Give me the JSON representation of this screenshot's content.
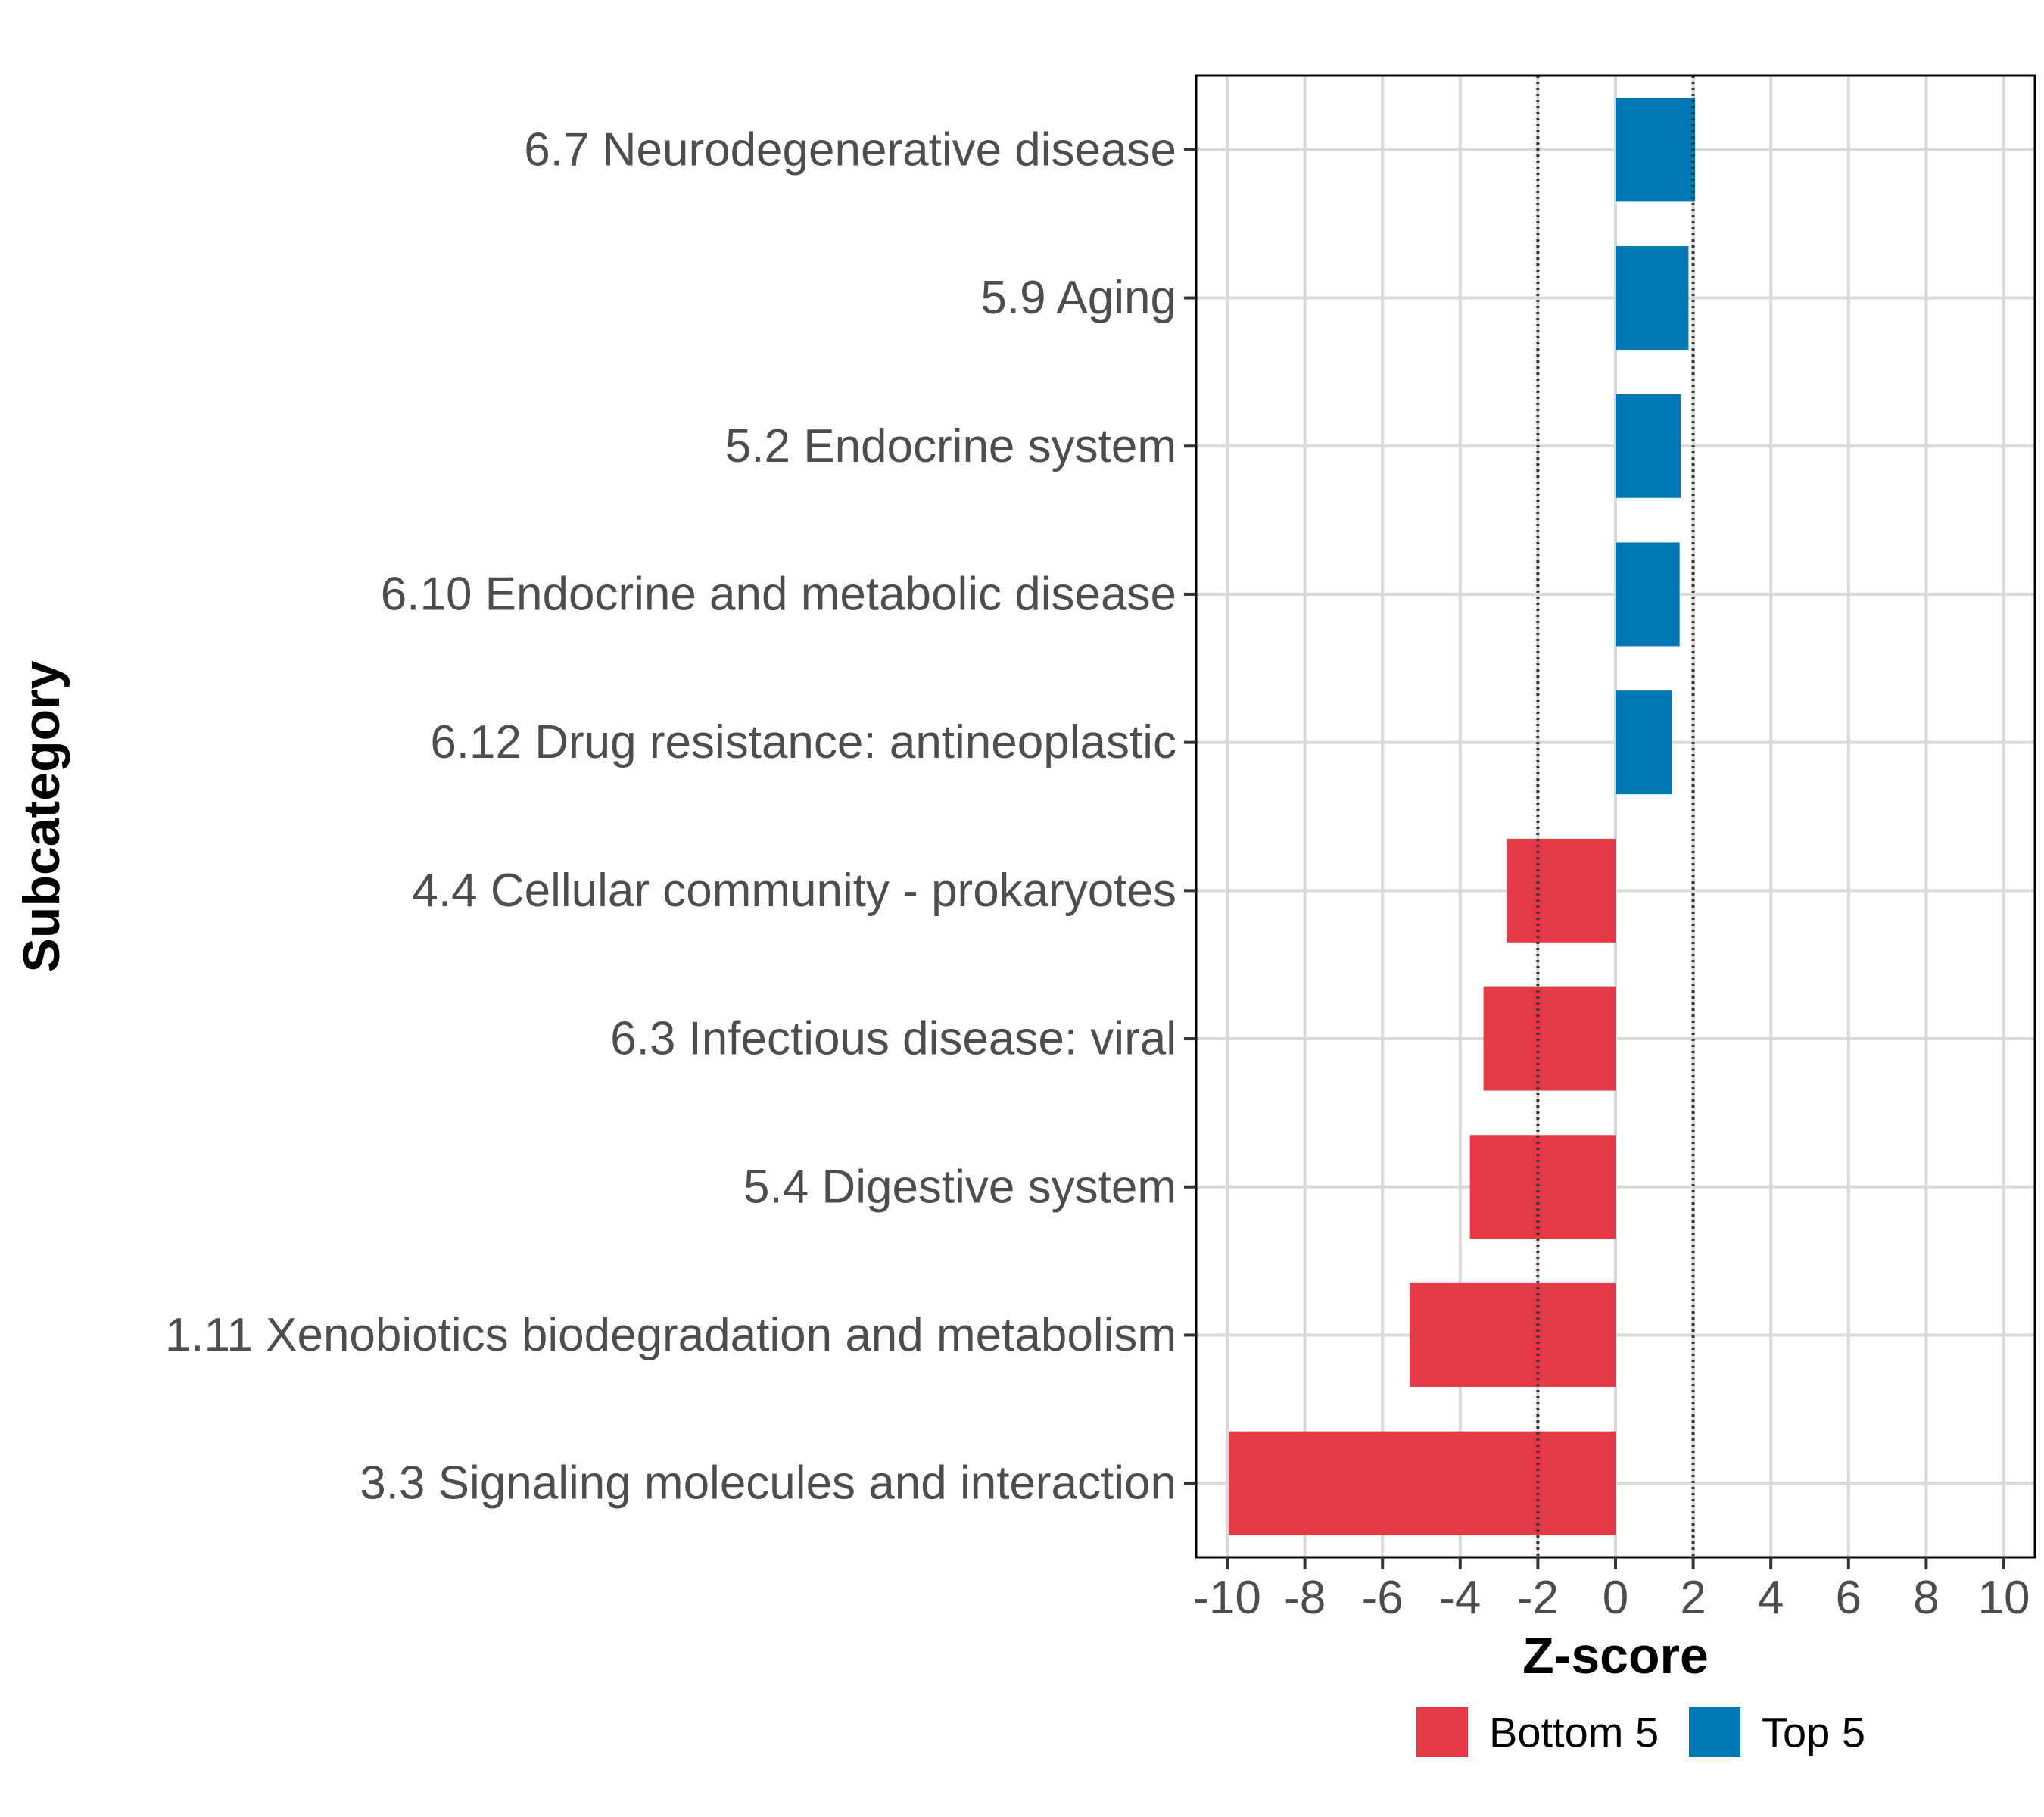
{
  "chart_data": {
    "type": "bar",
    "orientation": "horizontal",
    "categories": [
      "6.7 Neurodegenerative disease",
      "5.9 Aging",
      "5.2 Endocrine system",
      "6.10 Endocrine and metabolic disease",
      "6.12 Drug resistance: antineoplastic",
      "4.4 Cellular community - prokaryotes",
      "6.3 Infectious disease: viral",
      "5.4 Digestive system",
      "1.11 Xenobiotics biodegradation and metabolism",
      "3.3 Signaling molecules and interaction"
    ],
    "values": [
      2.05,
      1.88,
      1.68,
      1.65,
      1.45,
      -2.8,
      -3.4,
      -3.75,
      -5.3,
      -9.95
    ],
    "groups": [
      "Top 5",
      "Top 5",
      "Top 5",
      "Top 5",
      "Top 5",
      "Bottom 5",
      "Bottom 5",
      "Bottom 5",
      "Bottom 5",
      "Bottom 5"
    ],
    "xlabel": "Z-score",
    "ylabel": "Subcategory",
    "xlim": [
      -10.8,
      10.8
    ],
    "xticks": [
      -10,
      -8,
      -6,
      -4,
      -2,
      0,
      2,
      4,
      6,
      8,
      10
    ],
    "xtick_labels": [
      "-10",
      "-8",
      "-6",
      "-4",
      "-2",
      "0",
      "2",
      "4",
      "6",
      "8",
      "10"
    ],
    "reference_lines": [
      -2,
      2
    ],
    "grid": true,
    "legend": {
      "position": "bottom",
      "entries": [
        {
          "label": "Bottom 5",
          "color": "#e63946"
        },
        {
          "label": "Top 5",
          "color": "#0077b6"
        }
      ]
    },
    "colors": {
      "Bottom 5": "#e63946",
      "Top 5": "#0077b6",
      "grid": "#d9d9d9",
      "reference_line": "#333333"
    }
  }
}
